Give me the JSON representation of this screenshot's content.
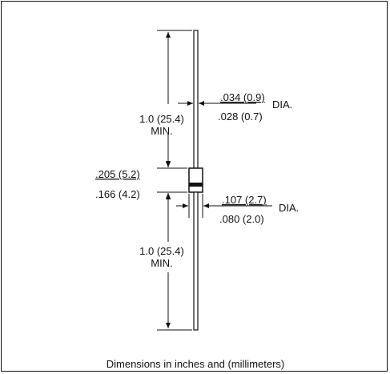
{
  "labels": {
    "upper_lead_length_1": "1.0 (25.4)",
    "upper_lead_length_2": "MIN.",
    "lead_dia_max": ".034 (0.9)",
    "lead_dia_min": ".028 (0.7)",
    "lead_dia_suffix": "DIA.",
    "body_len_max": ".205 (5.2)",
    "body_len_min": ".166 (4.2)",
    "body_dia_max": ".107 (2.7)",
    "body_dia_min": ".080 (2.0)",
    "body_dia_suffix": "DIA.",
    "lower_lead_length_1": "1.0 (25.4)",
    "lower_lead_length_2": "MIN.",
    "footer": "Dimensions in inches and (millimeters)"
  }
}
